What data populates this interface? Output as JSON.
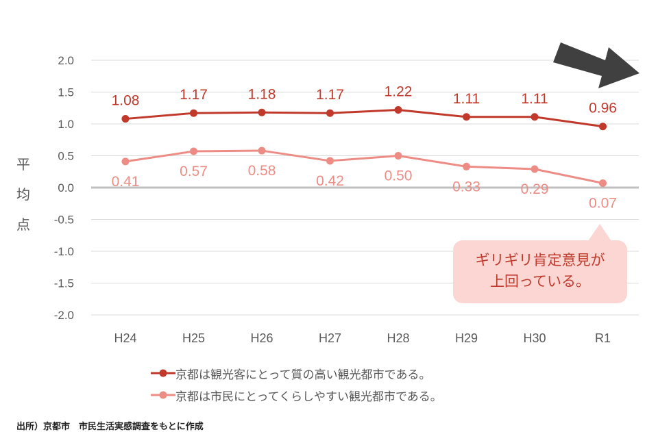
{
  "chart_data": {
    "type": "line",
    "categories": [
      "H24",
      "H25",
      "H26",
      "H27",
      "H28",
      "H29",
      "H30",
      "R1"
    ],
    "series": [
      {
        "name": "京都は観光客にとって質の高い観光都市である。",
        "values": [
          1.08,
          1.17,
          1.18,
          1.17,
          1.22,
          1.11,
          1.11,
          0.96
        ],
        "color": "#c0392b"
      },
      {
        "name": "京都は市民にとってくらしやすい観光都市である。",
        "values": [
          0.41,
          0.57,
          0.58,
          0.42,
          0.5,
          0.33,
          0.29,
          0.07
        ],
        "color": "#ed8c84"
      }
    ],
    "ylabel": "平均点",
    "ylim": [
      -2.0,
      2.0
    ],
    "yticks": [
      "2.0",
      "1.5",
      "1.0",
      "0.5",
      "0.0",
      "-0.5",
      "-1.0",
      "-1.5",
      "-2.0"
    ],
    "grid": true,
    "legend": "bottom"
  },
  "annotation": {
    "line1": "ギリギリ肯定意見が",
    "line2": "上回っている。"
  },
  "ylabel_chars": [
    "平",
    "均",
    "点"
  ],
  "source": "出所）京都市　市民生活実感調査をもとに作成",
  "colors": {
    "grid": "#d9d9d9",
    "zero_line": "#bfbfbf",
    "axis_text": "#595959",
    "arrow": "#404040",
    "callout_bg": "#fbd6d2"
  }
}
